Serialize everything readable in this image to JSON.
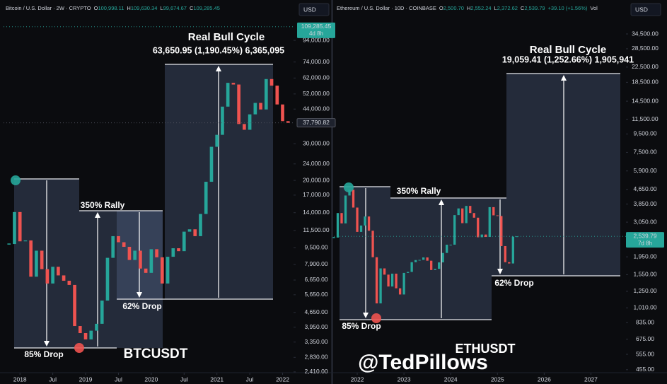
{
  "chart_data": [
    {
      "type": "candlestick",
      "title": "Bitcoin / U.S. Dollar · 2W · CRYPTO",
      "ohlc": [
        {
          "label": "O",
          "value": "100,998.11"
        },
        {
          "label": "H",
          "value": "109,630.34"
        },
        {
          "label": "L",
          "value": "99,674.67"
        },
        {
          "label": "C",
          "value": "109,285.45"
        }
      ],
      "currency": "USD",
      "log_scale": true,
      "up_color": "#26a69a",
      "down_color": "#ef5350",
      "x": [
        "2017-11",
        "2017-12",
        "2018-01",
        "2018-02",
        "2018-03",
        "2018-04",
        "2018-05",
        "2018-06",
        "2018-07",
        "2018-08",
        "2018-09",
        "2018-10",
        "2018-11",
        "2018-12",
        "2019-01",
        "2019-02",
        "2019-03",
        "2019-04",
        "2019-05",
        "2019-06",
        "2019-07",
        "2019-08",
        "2019-09",
        "2019-10",
        "2019-11",
        "2019-12",
        "2020-01",
        "2020-02",
        "2020-03",
        "2020-04",
        "2020-05",
        "2020-06",
        "2020-07",
        "2020-08",
        "2020-09",
        "2020-10",
        "2020-11",
        "2020-12",
        "2021-01",
        "2021-02",
        "2021-03",
        "2021-04",
        "2021-05",
        "2021-06",
        "2021-07",
        "2021-08",
        "2021-09",
        "2021-10",
        "2021-11",
        "2021-12",
        "2022-01",
        "2022-02"
      ],
      "values": [
        9900,
        14100,
        10200,
        10300,
        6900,
        9200,
        7500,
        6400,
        7700,
        7000,
        6600,
        6300,
        4000,
        3700,
        3450,
        3800,
        4100,
        5300,
        8500,
        10800,
        10100,
        9600,
        8300,
        9200,
        7550,
        7200,
        9350,
        8550,
        6400,
        8600,
        9450,
        9150,
        11350,
        11650,
        10800,
        13800,
        19700,
        29000,
        33100,
        45200,
        58800,
        57700,
        37300,
        35000,
        41500,
        47100,
        43800,
        61300,
        57000,
        46300,
        38500,
        37790
      ],
      "xlim": [
        "2017-10",
        "2022-03"
      ],
      "xticks": [
        {
          "value": "2018-01",
          "label": "2018"
        },
        {
          "value": "2018-07",
          "label": "Jul"
        },
        {
          "value": "2019-01",
          "label": "2019"
        },
        {
          "value": "2019-07",
          "label": "Jul"
        },
        {
          "value": "2020-01",
          "label": "2020"
        },
        {
          "value": "2020-07",
          "label": "Jul"
        },
        {
          "value": "2021-01",
          "label": "2021"
        },
        {
          "value": "2021-07",
          "label": "Jul"
        },
        {
          "value": "2022-01",
          "label": "2022"
        }
      ],
      "ylim": [
        2370,
        118000
      ],
      "yticks": [
        {
          "value": 94000,
          "label": "94,000.00"
        },
        {
          "value": 74000,
          "label": "74,000.00"
        },
        {
          "value": 62000,
          "label": "62,000.00"
        },
        {
          "value": 52000,
          "label": "52,000.00"
        },
        {
          "value": 44000,
          "label": "44,000.00"
        },
        {
          "value": 30000,
          "label": "30,000.00"
        },
        {
          "value": 24000,
          "label": "24,000.00"
        },
        {
          "value": 20000,
          "label": "20,000.00"
        },
        {
          "value": 17000,
          "label": "17,000.00"
        },
        {
          "value": 14000,
          "label": "14,000.00"
        },
        {
          "value": 11500,
          "label": "11,500.00"
        },
        {
          "value": 9500,
          "label": "9,500.00"
        },
        {
          "value": 7900,
          "label": "7,900.00"
        },
        {
          "value": 6650,
          "label": "6,650.00"
        },
        {
          "value": 5650,
          "label": "5,650.00"
        },
        {
          "value": 4650,
          "label": "4,650.00"
        },
        {
          "value": 3950,
          "label": "3,950.00"
        },
        {
          "value": 3350,
          "label": "3,350.00"
        },
        {
          "value": 2830,
          "label": "2,830.00"
        },
        {
          "value": 2410,
          "label": "2,410.00"
        }
      ],
      "price_tags": [
        {
          "value": 109285.45,
          "label": "109,285.45",
          "countdown": "4d 8h",
          "color": "#26a69a"
        },
        {
          "value": 37790.82,
          "label": "37,790.82",
          "color": "#1e222d"
        }
      ],
      "cycle_label": "Real Bull Cycle",
      "cycle_stats": "63,650.95 (1,190.45%) 6,365,095",
      "rally_label": "350% Rally",
      "drop_label": "62% Drop",
      "crash_label": "85% Drop",
      "symbol": "BTCUSDT"
    },
    {
      "type": "candlestick",
      "title": "Ethereum / U.S. Dollar · 10D · COINBASE",
      "ohlc": [
        {
          "label": "O",
          "value": "2,500.70"
        },
        {
          "label": "H",
          "value": "2,552.24"
        },
        {
          "label": "L",
          "value": "2,372.62"
        },
        {
          "label": "C",
          "value": "2,539.79"
        }
      ],
      "change": "+39.10 (+1.56%)",
      "volume_label": "Vol",
      "currency": "USD",
      "log_scale": true,
      "up_color": "#26a69a",
      "down_color": "#ef5350",
      "x": [
        "2021-07",
        "2021-08",
        "2021-09",
        "2021-10",
        "2021-11",
        "2021-12",
        "2022-01",
        "2022-02",
        "2022-03",
        "2022-04",
        "2022-05",
        "2022-06",
        "2022-07",
        "2022-08",
        "2022-09",
        "2022-10",
        "2022-11",
        "2022-12",
        "2023-01",
        "2023-02",
        "2023-03",
        "2023-04",
        "2023-05",
        "2023-06",
        "2023-07",
        "2023-08",
        "2023-09",
        "2023-10",
        "2023-11",
        "2023-12",
        "2024-01",
        "2024-02",
        "2024-03",
        "2024-04",
        "2024-05",
        "2024-06",
        "2024-07",
        "2024-08",
        "2024-09",
        "2024-10",
        "2024-11",
        "2024-12",
        "2025-01",
        "2025-02",
        "2025-03",
        "2025-04",
        "2025-05",
        "2025-06"
      ],
      "values": [
        2500,
        3430,
        3000,
        4300,
        4630,
        3680,
        2690,
        2920,
        3280,
        2730,
        1940,
        1070,
        1680,
        1550,
        1330,
        1570,
        1300,
        1200,
        1585,
        1605,
        1820,
        1870,
        1875,
        1935,
        1855,
        1645,
        1670,
        1815,
        2050,
        2280,
        2280,
        3340,
        3640,
        3010,
        3760,
        3430,
        3230,
        2510,
        2600,
        2520,
        3700,
        3330,
        3300,
        2240,
        1820,
        1790,
        2530,
        2539.79
      ],
      "xlim": [
        "2021-07",
        "2027-10"
      ],
      "xticks": [
        {
          "value": "2022-01",
          "label": "2022"
        },
        {
          "value": "2023-01",
          "label": "2023"
        },
        {
          "value": "2024-01",
          "label": "2024"
        },
        {
          "value": "2025-01",
          "label": "2025"
        },
        {
          "value": "2026-01",
          "label": "2026"
        },
        {
          "value": "2027-01",
          "label": "2027"
        }
      ],
      "ylim": [
        434,
        41400
      ],
      "yticks": [
        {
          "value": 34500,
          "label": "34,500.00"
        },
        {
          "value": 28500,
          "label": "28,500.00"
        },
        {
          "value": 22500,
          "label": "22,500.00"
        },
        {
          "value": 18500,
          "label": "18,500.00"
        },
        {
          "value": 14500,
          "label": "14,500.00"
        },
        {
          "value": 11500,
          "label": "11,500.00"
        },
        {
          "value": 9500,
          "label": "9,500.00"
        },
        {
          "value": 7500,
          "label": "7,500.00"
        },
        {
          "value": 5900,
          "label": "5,900.00"
        },
        {
          "value": 4650,
          "label": "4,650.00"
        },
        {
          "value": 3850,
          "label": "3,850.00"
        },
        {
          "value": 3050,
          "label": "3,050.00"
        },
        {
          "value": 1950,
          "label": "1,950.00"
        },
        {
          "value": 1550,
          "label": "1,550.00"
        },
        {
          "value": 1250,
          "label": "1,250.00"
        },
        {
          "value": 1010,
          "label": "1,010.00"
        },
        {
          "value": 835,
          "label": "835.00"
        },
        {
          "value": 675,
          "label": "675.00"
        },
        {
          "value": 555,
          "label": "555.00"
        },
        {
          "value": 455,
          "label": "455.00"
        }
      ],
      "price_tags": [
        {
          "value": 2539.79,
          "label": "2,539.79",
          "countdown": "7d 8h",
          "color": "#26a69a"
        }
      ],
      "cycle_label": "Real Bull Cycle",
      "cycle_stats": "19,059.41 (1,252.66%) 1,905,941",
      "rally_label": "350% Rally",
      "drop_label": "62% Drop",
      "crash_label": "85% Drop",
      "symbol": "ETHUSDT",
      "watermark": "@TedPillows"
    }
  ]
}
